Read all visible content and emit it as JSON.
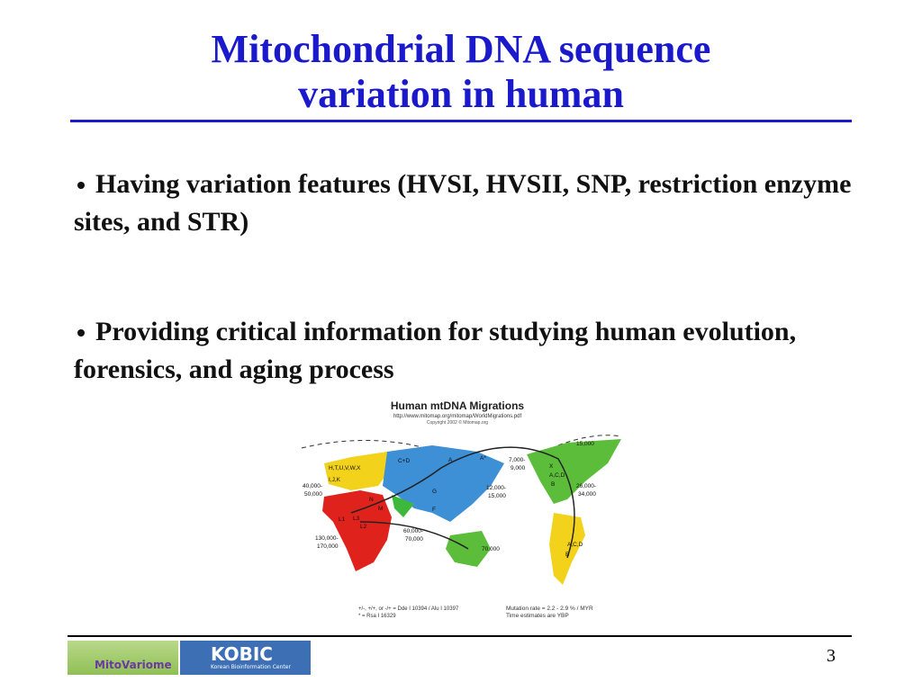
{
  "title": {
    "lines": [
      "Mitochondrial DNA sequence",
      "variation in human"
    ]
  },
  "bullets": [
    "Having variation features (HVSI, HVSII, SNP, restriction enzyme sites, and STR)",
    "Providing critical information for studying human evolution, forensics, and aging process"
  ],
  "figure": {
    "title": "Human mtDNA Migrations",
    "url": "http://www.mitomap.org/mitomap/WorldMigrations.pdf",
    "copyright": "Copyright 2002 ©   Mitomap.org",
    "labels": [
      "H,T,U,V,W,X",
      "I,J,K",
      "40,000-",
      "50,000",
      "130,000-",
      "170,000",
      "60,000-",
      "70,000",
      "70,000",
      "12,000-",
      "15,000",
      "7,000-",
      "9,000",
      "15,000",
      "26,000-",
      "34,000",
      "X",
      "A,C,D",
      "B",
      "A,C,D",
      "B",
      "C+D",
      "A",
      "A*",
      "G",
      "F",
      "M",
      "N",
      "L1",
      "L3",
      "L2"
    ],
    "notes": [
      "+/-, +/+, or -/+ = Dde I 10394 / Alu I 10397",
      "* = Rsa I 16329",
      "Mutation rate = 2.2 - 2.9 % / MYR",
      "Time estimates are YBP"
    ]
  },
  "footer": {
    "logo1": "MitoVariome",
    "logo2": "KOBIC",
    "logo2_sub": "Korean Bioinformation Center",
    "page": "3"
  }
}
